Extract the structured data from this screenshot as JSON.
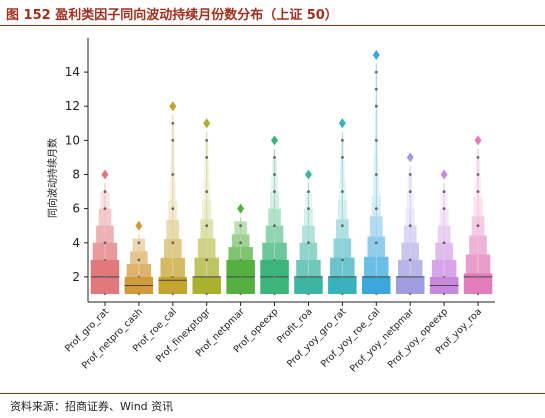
{
  "figure": {
    "title": "图 152 盈利类因子同向波动持续月份数分布（上证 50）",
    "source": "资料来源：招商证券、Wind 资讯"
  },
  "chart_data": {
    "type": "boxen",
    "title": "",
    "xlabel": "",
    "ylabel": "同向波动持续月数",
    "ylim": [
      0,
      16
    ],
    "yticks": [
      2,
      4,
      6,
      8,
      10,
      12,
      14
    ],
    "grid": false,
    "categories": [
      {
        "name": "Prof_gro_rat",
        "color": "#e0787c",
        "median": 2,
        "q1": 1,
        "q3": 3,
        "max": 8
      },
      {
        "name": "Prof_netpro_cash",
        "color": "#d39a3b",
        "median": 1.5,
        "q1": 1,
        "q3": 2,
        "max": 5
      },
      {
        "name": "Prof_roe_cal",
        "color": "#c5a32e",
        "median": 1.8,
        "q1": 1,
        "q3": 2,
        "max": 12
      },
      {
        "name": "Prof_finexptogr",
        "color": "#aab12e",
        "median": 2,
        "q1": 1,
        "q3": 2,
        "max": 11
      },
      {
        "name": "Prof_netpmar",
        "color": "#55b042",
        "median": 2,
        "q1": 1,
        "q3": 3,
        "max": 6
      },
      {
        "name": "Prof_opeexp",
        "color": "#3bb57a",
        "median": 2,
        "q1": 1,
        "q3": 3,
        "max": 10
      },
      {
        "name": "Profit_roa",
        "color": "#3db5a2",
        "median": 2,
        "q1": 1,
        "q3": 2,
        "max": 8
      },
      {
        "name": "Prof_yoy_gro_rat",
        "color": "#38b2bd",
        "median": 2,
        "q1": 1,
        "q3": 2,
        "max": 11
      },
      {
        "name": "Prof_yoy_roe_cal",
        "color": "#3aa8dc",
        "median": 2,
        "q1": 1,
        "q3": 2,
        "max": 15
      },
      {
        "name": "Prof_yoy_netpmar",
        "color": "#a09ce0",
        "median": 2,
        "q1": 1,
        "q3": 2,
        "max": 9
      },
      {
        "name": "Prof_yoy_opeexp",
        "color": "#c888e0",
        "median": 1.5,
        "q1": 1,
        "q3": 2,
        "max": 8
      },
      {
        "name": "Prof_yoy_roa",
        "color": "#e27cba",
        "median": 2,
        "q1": 1,
        "q3": 2.2,
        "max": 10
      }
    ]
  }
}
